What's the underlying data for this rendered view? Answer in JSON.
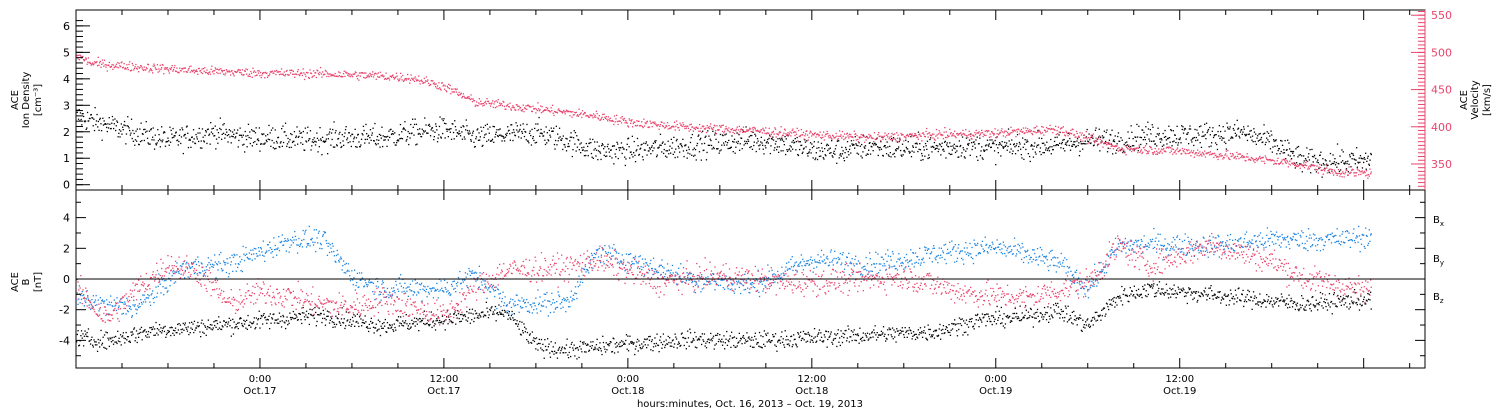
{
  "chart_data": [
    {
      "type": "scatter",
      "panel": "top",
      "ylabel_left": [
        "ACE",
        "Ion Density",
        "[cm⁻³]"
      ],
      "ylabel_right": [
        "ACE",
        "Velocity",
        "[km/s]"
      ],
      "ylim_left": [
        -0.2,
        6.6
      ],
      "yticks_left": [
        0,
        1,
        2,
        3,
        4,
        5,
        6
      ],
      "ylim_right": [
        315,
        557
      ],
      "yticks_right": [
        350,
        400,
        450,
        500,
        550
      ],
      "series": [
        {
          "name": "Ion Density",
          "axis": "left",
          "color": "#000000",
          "keypoints_x_hours": [
            0,
            3,
            6,
            9,
            11,
            13,
            15,
            17,
            20,
            22,
            24,
            26,
            28,
            30,
            32,
            34,
            36,
            38,
            40,
            42,
            44,
            46,
            48,
            50,
            52,
            53,
            54,
            56,
            58,
            60,
            62,
            64,
            66,
            68,
            70,
            72,
            74,
            76,
            78,
            80,
            82,
            84,
            84.5
          ],
          "keypoints_y": [
            2.6,
            2.1,
            1.7,
            2.0,
            1.8,
            1.8,
            1.7,
            1.8,
            1.8,
            2.0,
            2.1,
            1.8,
            1.9,
            2.0,
            1.7,
            1.3,
            1.3,
            1.4,
            1.5,
            1.6,
            1.7,
            1.6,
            1.3,
            1.3,
            1.5,
            1.4,
            1.4,
            1.4,
            1.5,
            1.4,
            1.5,
            1.5,
            1.7,
            1.7,
            1.9,
            1.9,
            1.9,
            2.0,
            1.6,
            0.9,
            0.9,
            0.9,
            1.0
          ]
        },
        {
          "name": "Velocity",
          "axis": "right",
          "color": "#e8446c",
          "keypoints_x_hours": [
            0,
            1,
            4,
            8,
            12,
            16,
            20,
            22,
            24,
            26,
            30,
            34,
            36,
            40,
            44,
            48,
            52,
            56,
            60,
            64,
            66,
            68,
            72,
            76,
            80,
            82,
            84.5
          ],
          "keypoints_y": [
            497,
            486,
            481,
            476,
            473,
            472,
            469,
            466,
            455,
            434,
            425,
            415,
            407,
            400,
            396,
            390,
            386,
            390,
            392,
            398,
            385,
            372,
            368,
            360,
            350,
            340,
            338
          ]
        }
      ]
    },
    {
      "type": "scatter",
      "panel": "bottom",
      "ylabel": [
        "ACE",
        "B",
        "[nT]"
      ],
      "ylim": [
        -5.8,
        5.8
      ],
      "yticks": [
        -4,
        -2,
        0,
        2,
        4
      ],
      "zero_line": true,
      "legend_position": "right",
      "series": [
        {
          "name": "Bx",
          "color": "#000000",
          "keypoints_x_hours": [
            0,
            2,
            5,
            8,
            12,
            16,
            20,
            24,
            28,
            30,
            32,
            36,
            40,
            44,
            48,
            52,
            56,
            59,
            62,
            64,
            66,
            68,
            70,
            72,
            76,
            80,
            84.5
          ],
          "keypoints_y": [
            -3.8,
            -4.0,
            -3.3,
            -3.1,
            -2.7,
            -2.3,
            -3.0,
            -2.6,
            -2.1,
            -4.3,
            -4.6,
            -4.2,
            -3.9,
            -4.0,
            -3.8,
            -3.6,
            -3.4,
            -2.6,
            -2.4,
            -2.0,
            -3.0,
            -1.1,
            -0.6,
            -0.8,
            -1.2,
            -1.6,
            -1.3
          ]
        },
        {
          "name": "By",
          "color": "#1b83e0",
          "keypoints_x_hours": [
            0,
            2,
            4,
            7,
            10,
            12,
            14,
            16,
            18,
            20,
            24,
            26,
            28,
            32,
            34,
            36,
            40,
            44,
            48,
            52,
            56,
            60,
            62,
            64,
            66,
            68,
            70,
            74,
            78,
            82,
            84.5
          ],
          "keypoints_y": [
            -1.2,
            -1.7,
            -1.8,
            0.8,
            1.0,
            1.8,
            2.6,
            2.6,
            0.2,
            -0.6,
            -0.6,
            0.3,
            -1.6,
            -1.5,
            1.8,
            1.3,
            0.1,
            -0.4,
            1.3,
            1.0,
            1.7,
            2.1,
            1.6,
            1.1,
            -0.6,
            2.2,
            2.3,
            2.2,
            2.6,
            2.6,
            2.8
          ]
        },
        {
          "name": "Bz",
          "color": "#e8446c",
          "keypoints_x_hours": [
            0,
            2,
            4,
            6,
            8,
            10,
            12,
            14,
            16,
            18,
            20,
            24,
            26,
            28,
            32,
            34,
            38,
            42,
            46,
            50,
            54,
            58,
            62,
            66,
            68,
            70,
            72,
            74,
            78,
            80,
            84.5
          ],
          "keypoints_y": [
            -0.6,
            -2.6,
            -0.6,
            1.0,
            0.5,
            -1.6,
            -0.8,
            -1.1,
            -1.6,
            -1.8,
            -1.3,
            -2.4,
            -0.5,
            0.6,
            0.8,
            1.3,
            -0.2,
            0.3,
            -0.2,
            -0.1,
            0.2,
            -0.9,
            -1.2,
            -0.2,
            2.2,
            0.9,
            1.6,
            2.3,
            1.2,
            0.1,
            -0.8
          ]
        }
      ]
    }
  ],
  "x_axis": {
    "range_hours": [
      0,
      88
    ],
    "data_end_hours": 84.5,
    "tick_labels": [
      {
        "hour": 12,
        "time": "0:00",
        "date": "Oct.17"
      },
      {
        "hour": 24,
        "time": "12:00",
        "date": "Oct.17"
      },
      {
        "hour": 36,
        "time": "0:00",
        "date": "Oct.18"
      },
      {
        "hour": 48,
        "time": "12:00",
        "date": "Oct.18"
      },
      {
        "hour": 60,
        "time": "0:00",
        "date": "Oct.19"
      },
      {
        "hour": 72,
        "time": "12:00",
        "date": "Oct.19"
      }
    ],
    "xlabel": "hours:minutes, Oct. 16, 2013 – Oct. 19, 2013"
  },
  "legend": [
    {
      "main": "B",
      "sub": "x",
      "color": "#000000"
    },
    {
      "main": "B",
      "sub": "y",
      "color": "#1b83e0"
    },
    {
      "main": "B",
      "sub": "z",
      "color": "#e8446c"
    }
  ],
  "colors": {
    "axis": "#000000",
    "velocity_axis": "#e8446c",
    "background": "#ffffff"
  }
}
